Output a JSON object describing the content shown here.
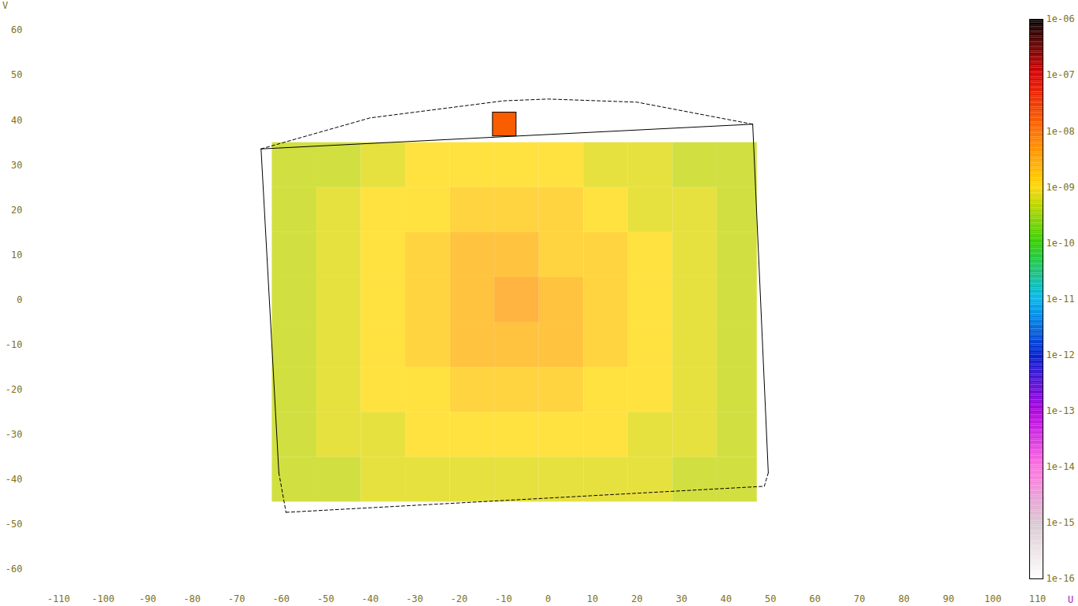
{
  "chart_data": {
    "type": "heatmap",
    "x_label": "U",
    "y_label": "V",
    "xlim": [
      -110,
      110
    ],
    "ylim": [
      -60,
      60
    ],
    "xticks": [
      -110,
      -100,
      -90,
      -80,
      -70,
      -60,
      -50,
      -40,
      -30,
      -20,
      -10,
      0,
      10,
      20,
      30,
      40,
      50,
      60,
      70,
      80,
      90,
      100,
      110
    ],
    "yticks": [
      -60,
      -50,
      -40,
      -30,
      -20,
      -10,
      0,
      10,
      20,
      30,
      40,
      50,
      60
    ],
    "grid": false,
    "cells": {
      "x_edges": [
        -62,
        -52,
        -42,
        -32,
        -22,
        -12,
        -2,
        8,
        18,
        28,
        38,
        47
      ],
      "y_edges": [
        -45,
        -35,
        -25,
        -15,
        -5,
        5,
        15,
        25,
        35
      ],
      "values": [
        [
          5e-10,
          5e-10,
          7e-10,
          7e-10,
          7e-10,
          7e-10,
          7e-10,
          7e-10,
          7e-10,
          5e-10,
          5e-10
        ],
        [
          5e-10,
          7e-10,
          7e-10,
          1e-09,
          1e-09,
          1e-09,
          1e-09,
          1e-09,
          7e-10,
          7e-10,
          5e-10
        ],
        [
          5e-10,
          7e-10,
          1e-09,
          1e-09,
          1.5e-09,
          1.5e-09,
          1.5e-09,
          1e-09,
          1e-09,
          7e-10,
          5e-10
        ],
        [
          5e-10,
          7e-10,
          1e-09,
          1.5e-09,
          2.5e-09,
          2.5e-09,
          2.5e-09,
          1.5e-09,
          1e-09,
          7e-10,
          5e-10
        ],
        [
          5e-10,
          7e-10,
          1e-09,
          1.5e-09,
          2.5e-09,
          4e-09,
          2.5e-09,
          1.5e-09,
          1e-09,
          7e-10,
          5e-10
        ],
        [
          5e-10,
          7e-10,
          1e-09,
          1.5e-09,
          2.5e-09,
          2.5e-09,
          1.5e-09,
          1.5e-09,
          1e-09,
          7e-10,
          5e-10
        ],
        [
          5e-10,
          7e-10,
          1e-09,
          1e-09,
          1.5e-09,
          1.5e-09,
          1.5e-09,
          1e-09,
          7e-10,
          7e-10,
          5e-10
        ],
        [
          5e-10,
          5e-10,
          7e-10,
          1e-09,
          1e-09,
          1e-09,
          1e-09,
          7e-10,
          7e-10,
          5e-10,
          5e-10
        ]
      ]
    },
    "source_cell": {
      "x": [
        -12.4,
        -7.1
      ],
      "y": [
        36.4,
        41.7
      ],
      "value": 1.5e-08
    },
    "outline": [
      {
        "line_style": "solid",
        "x": [
          -64.5,
          46.0
        ],
        "y": [
          33.6,
          39.1
        ]
      },
      {
        "line_style": "dashed",
        "x": [
          -64.5,
          -40,
          -10,
          0,
          20,
          46.0
        ],
        "y": [
          33.6,
          40.5,
          44.3,
          44.7,
          44.0,
          39.1
        ]
      },
      {
        "line_style": "solid",
        "x": [
          -64.5,
          -60.5
        ],
        "y": [
          33.6,
          -38.5
        ]
      },
      {
        "line_style": "dashed",
        "x": [
          -60.5,
          -58.9
        ],
        "y": [
          -38.5,
          -47.3
        ]
      },
      {
        "line_style": "solid",
        "x": [
          46.0,
          49.5
        ],
        "y": [
          39.1,
          -38.5
        ]
      },
      {
        "line_style": "dashed",
        "x": [
          49.5,
          48.6
        ],
        "y": [
          -38.5,
          -41.5
        ]
      },
      {
        "line_style": "dashed",
        "x": [
          -58.9,
          48.6
        ],
        "y": [
          -47.3,
          -41.5
        ]
      }
    ],
    "colorbar": {
      "log": true,
      "range": [
        1e-16,
        1e-06
      ],
      "ticks": [
        {
          "value": 1e-16,
          "label": "1e-16"
        },
        {
          "value": 1e-15,
          "label": "1e-15"
        },
        {
          "value": 1e-14,
          "label": "1e-14"
        },
        {
          "value": 1e-13,
          "label": "1e-13"
        },
        {
          "value": 1e-12,
          "label": "1e-12"
        },
        {
          "value": 1e-11,
          "label": "1e-11"
        },
        {
          "value": 1e-10,
          "label": "1e-10"
        },
        {
          "value": 1e-09,
          "label": "1e-09"
        },
        {
          "value": 1e-08,
          "label": "1e-08"
        },
        {
          "value": 1e-07,
          "label": "1e-07"
        },
        {
          "value": 1e-06,
          "label": "1e-06"
        }
      ],
      "colors": [
        "#ffffff",
        "#d9c8d0",
        "#ff70e0",
        "#b000e0",
        "#0020d0",
        "#00b8f0",
        "#30d000",
        "#ffd800",
        "#ff7000",
        "#e00000",
        "#000000"
      ]
    }
  }
}
